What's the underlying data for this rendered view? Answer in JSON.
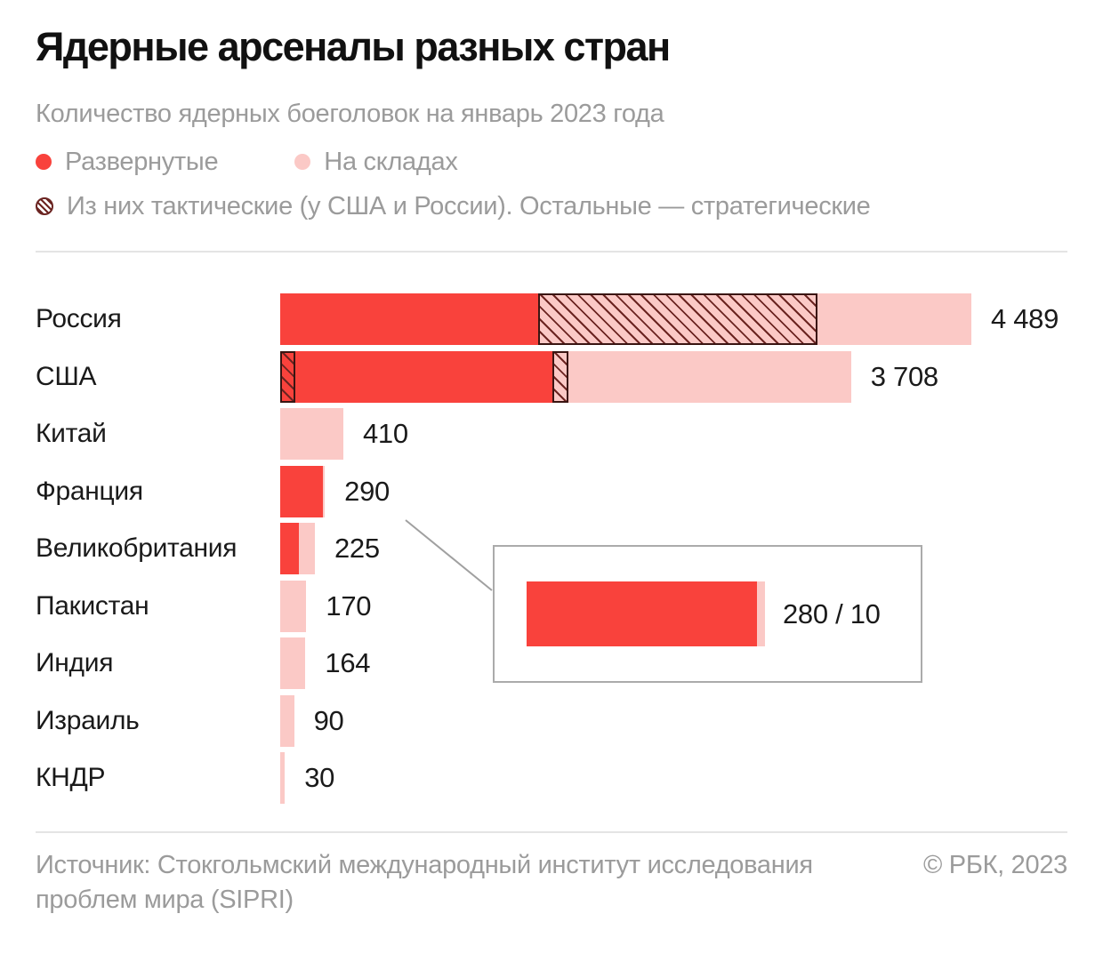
{
  "header": {
    "title": "Ядерные арсеналы разных стран",
    "subtitle": "Количество ядерных боеголовок на январь 2023 года",
    "legend": {
      "deployed_label": "Развернутые",
      "stored_label": "На складах",
      "tactical_note": "Из них тактические (у США и России). Остальные — стратегические"
    }
  },
  "colors": {
    "deployed_red": "#f9423c",
    "stored_pink": "#fbc9c6",
    "hatch_line": "#6b2421",
    "hatch_border": "#3a1512",
    "connector_gray": "#a0a0a0"
  },
  "chart_data": {
    "type": "bar",
    "orientation": "horizontal",
    "title": "Ядерные арсеналы разных стран",
    "subtitle": "Количество ядерных боеголовок на январь 2023 года",
    "xlim": [
      0,
      4489
    ],
    "grid": false,
    "legend_position": "top",
    "legend": [
      "Развернутые",
      "На складах",
      "Из них тактические (у США и России). Остальные — стратегические"
    ],
    "segment_kinds": [
      "deployed",
      "stored",
      "tactical-deployed",
      "tactical-stored"
    ],
    "rows": [
      {
        "country": "Россия",
        "total": 4489,
        "total_label": "4 489",
        "segments": [
          {
            "kind": "deployed",
            "value": 1674
          },
          {
            "kind": "tactical-stored",
            "value": 1816
          },
          {
            "kind": "stored",
            "value": 999
          }
        ]
      },
      {
        "country": "США",
        "total": 3708,
        "total_label": "3 708",
        "segments": [
          {
            "kind": "tactical-deployed",
            "value": 100
          },
          {
            "kind": "deployed",
            "value": 1670
          },
          {
            "kind": "tactical-stored",
            "value": 100
          },
          {
            "kind": "stored",
            "value": 1838
          }
        ]
      },
      {
        "country": "Китай",
        "total": 410,
        "total_label": "410",
        "segments": [
          {
            "kind": "stored",
            "value": 410
          }
        ]
      },
      {
        "country": "Франция",
        "total": 290,
        "total_label": "290",
        "segments": [
          {
            "kind": "deployed",
            "value": 280
          },
          {
            "kind": "stored",
            "value": 10
          }
        ]
      },
      {
        "country": "Великобритания",
        "total": 225,
        "total_label": "225",
        "segments": [
          {
            "kind": "deployed",
            "value": 120
          },
          {
            "kind": "stored",
            "value": 105
          }
        ]
      },
      {
        "country": "Пакистан",
        "total": 170,
        "total_label": "170",
        "segments": [
          {
            "kind": "stored",
            "value": 170
          }
        ]
      },
      {
        "country": "Индия",
        "total": 164,
        "total_label": "164",
        "segments": [
          {
            "kind": "stored",
            "value": 164
          }
        ]
      },
      {
        "country": "Израиль",
        "total": 90,
        "total_label": "90",
        "segments": [
          {
            "kind": "stored",
            "value": 90
          }
        ]
      },
      {
        "country": "КНДР",
        "total": 30,
        "total_label": "30",
        "segments": [
          {
            "kind": "stored",
            "value": 30
          }
        ]
      }
    ],
    "callout": {
      "for_country": "Франция",
      "label": "280 / 10",
      "deployed": 280,
      "stored": 10,
      "segments": [
        {
          "kind": "deployed",
          "value": 280
        },
        {
          "kind": "stored",
          "value": 10
        }
      ]
    }
  },
  "footer": {
    "source": "Источник: Стокгольмский международный институт исследования проблем мира (SIPRI)",
    "copyright": "© РБК, 2023"
  }
}
